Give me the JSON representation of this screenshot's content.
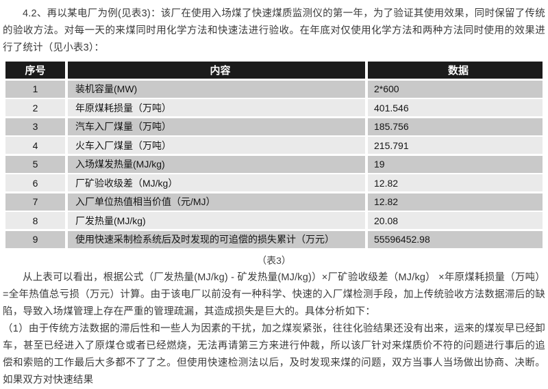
{
  "document": {
    "intro": "4.2、再以某电厂为例(见表3)：该厂在使用入场煤了快速煤质监测仪的第一年，为了验证其使用效果，同时保留了传统的验收方法。对每一天的来煤同时用化学方法和快速法进行验收。在年底对仅使用化学方法和两种方法同时使用的效果进行了统计（见小表3）：",
    "table": {
      "headers": [
        "序号",
        "内容",
        "数据"
      ],
      "rows": [
        [
          "1",
          "装机容量(MW)",
          "2*600"
        ],
        [
          "2",
          "年原煤耗损量（万吨）",
          "401.546"
        ],
        [
          "3",
          "汽车入厂煤量（万吨）",
          "185.756"
        ],
        [
          "4",
          "火车入厂煤量（万吨）",
          "215.791"
        ],
        [
          "5",
          "入场煤发热量(MJ/kg)",
          "19"
        ],
        [
          "6",
          "厂矿验收级差（MJ/kg）",
          "12.82"
        ],
        [
          "7",
          "入厂单位热值相当价值（元/MJ）",
          "12.82"
        ],
        [
          "8",
          "厂发热量(MJ/kg)",
          "20.08"
        ],
        [
          "9",
          "使用快速采制检系统后及时发现的可追偿的损失累计（万元）",
          "55596452.98"
        ]
      ]
    },
    "caption": "（表3）",
    "analysis": "从上表可以看出，根据公式（厂发热量(MJ/kg) - 矿发热量(MJ/kg)）×厂矿验收级差（MJ/kg） ×年原煤耗损量（万吨）=全年热值总亏损（万元）计算。由于该电厂以前没有一种科学、快速的入厂煤检测手段，加上传统验收方法数据滞后的缺陷，导致入场煤管理上存在严重的管理疏漏，其造成损失是巨大的。具体分析如下：",
    "point1": "（1）由于传统方法数据的滞后性和一些人为因素的干扰，加之煤炭紧张，往往化验结果还没有出来，运来的煤炭早已经卸车，甚至已经进入了原煤仓或者已经燃烧，无法再请第三方来进行仲裁，所以该厂针对来煤质价不符的问题进行事后的追偿和索赔的工作最后大多都不了了之。但使用快速检测法以后，及时发现来煤的问题，双方当事人当场做出协商、决断。如果双方对快速结果"
  },
  "colors": {
    "table_header_bg": "#1b1b1b",
    "table_row_odd": "#c9c9c9",
    "table_row_even": "#eaeaea",
    "text": "#3a3a3a"
  }
}
